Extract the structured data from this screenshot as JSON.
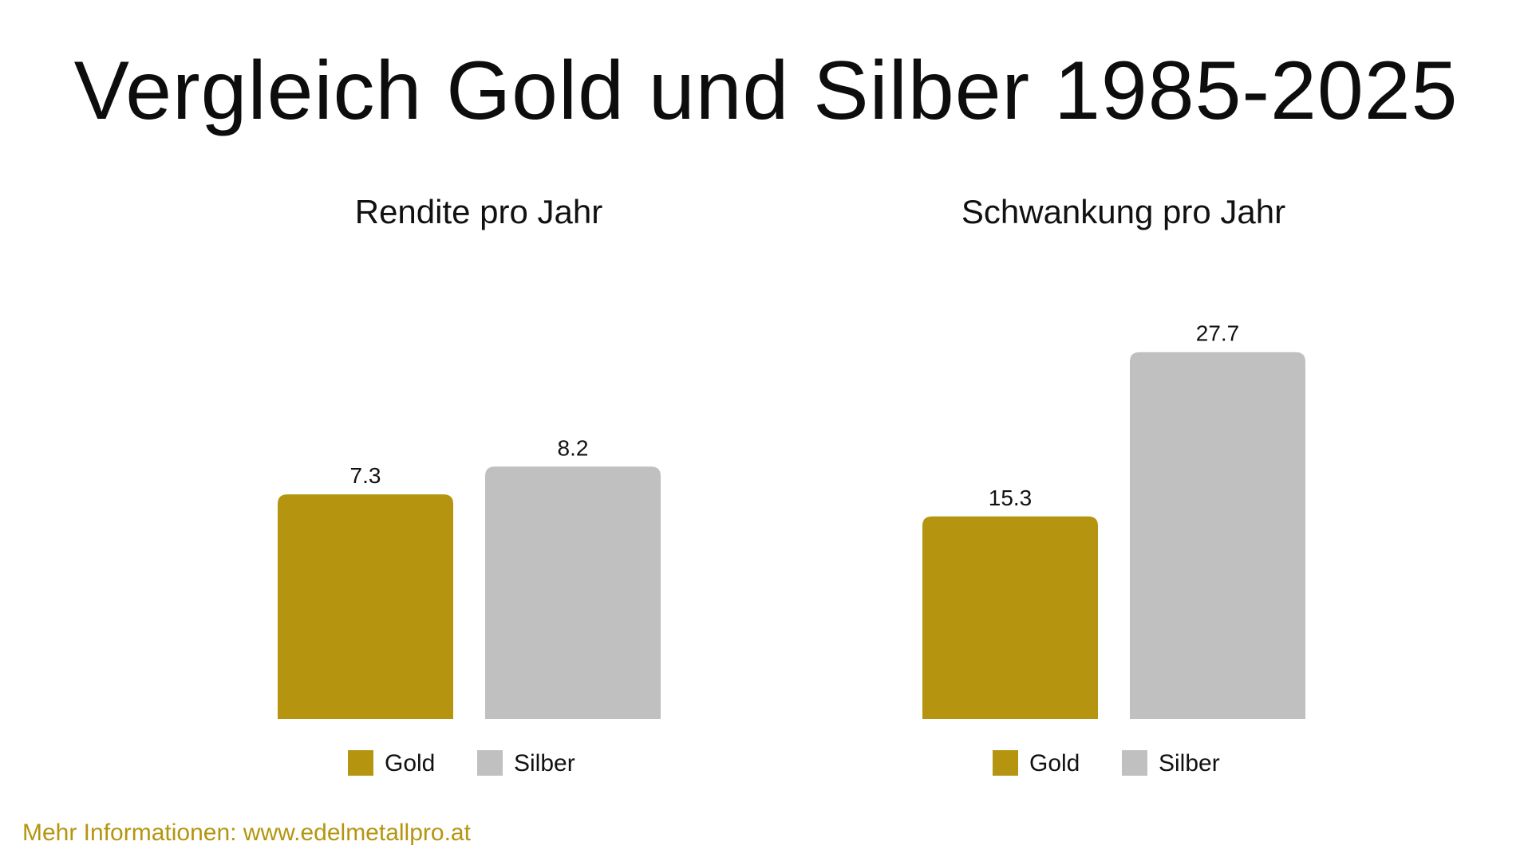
{
  "title": "Vergleich Gold und Silber 1985-2025",
  "footer": {
    "text": "Mehr Informationen: www.edelmetallpro.at"
  },
  "colors": {
    "gold": "#b5950f",
    "silver": "#c0c0c0",
    "footer": "#b5950f"
  },
  "chart_data": [
    {
      "type": "bar",
      "title": "Rendite pro Jahr",
      "categories": [
        "Gold",
        "Silber"
      ],
      "values": [
        7.3,
        8.2
      ],
      "value_labels": [
        "7.3",
        "8.2"
      ],
      "legend": [
        "Gold",
        "Silber"
      ],
      "ylim": [
        0,
        14.5
      ],
      "xlabel": "",
      "ylabel": "",
      "grid": false,
      "legend_position": "bottom"
    },
    {
      "type": "bar",
      "title": "Schwankung pro Jahr",
      "categories": [
        "Gold",
        "Silber"
      ],
      "values": [
        15.3,
        27.7
      ],
      "value_labels": [
        "15.3",
        "27.7"
      ],
      "legend": [
        "Gold",
        "Silber"
      ],
      "ylim": [
        0,
        33.7
      ],
      "xlabel": "",
      "ylabel": "",
      "grid": false,
      "legend_position": "bottom"
    }
  ]
}
